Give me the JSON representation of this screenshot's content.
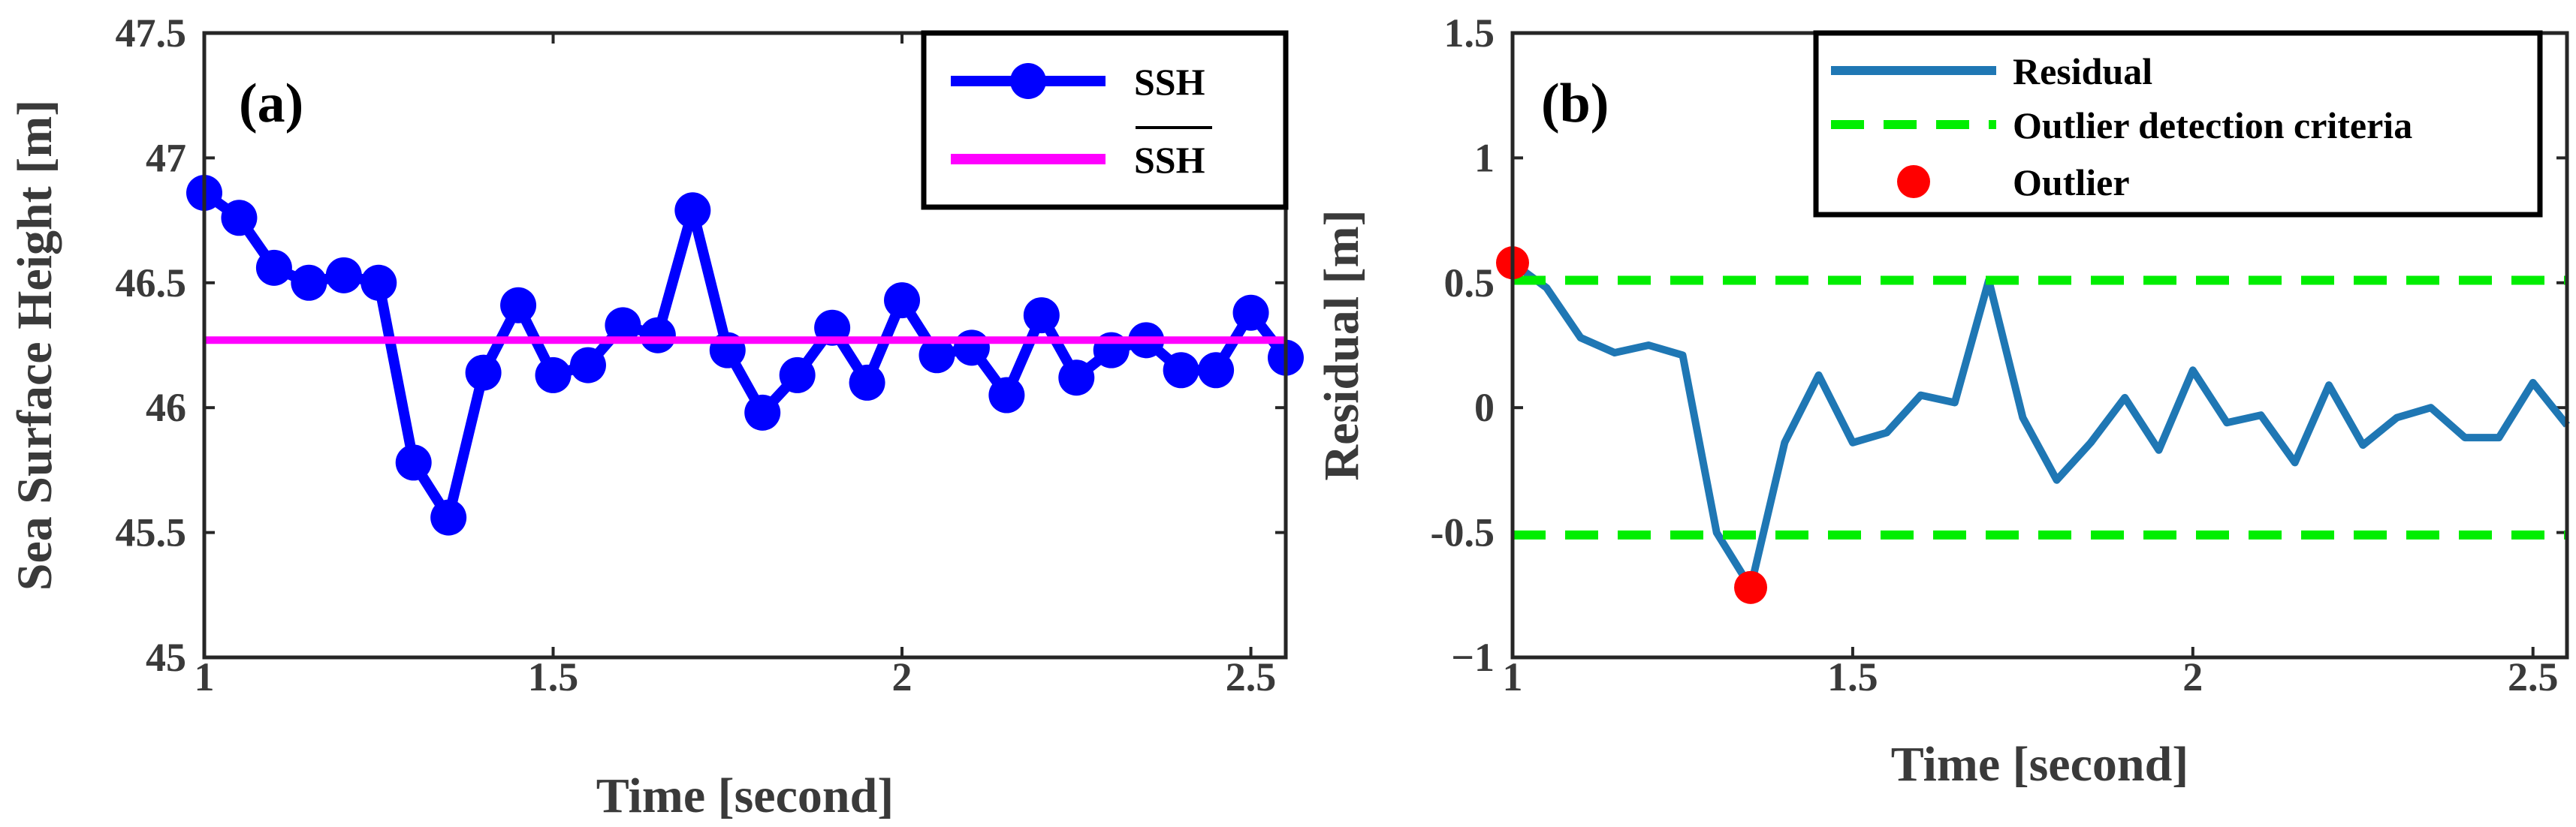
{
  "chart_data": [
    {
      "type": "line",
      "panel_label": "(a)",
      "xlabel": "Time [second]",
      "ylabel": "Sea Surface Height [m]",
      "xlim": [
        1,
        2.55
      ],
      "ylim": [
        45,
        47.5
      ],
      "xticks": [
        1,
        1.5,
        2,
        2.5
      ],
      "xtick_labels": [
        "1",
        "1.5",
        "2",
        "2.5"
      ],
      "yticks": [
        45,
        45.5,
        46,
        46.5,
        47,
        47.5
      ],
      "ytick_labels": [
        "45",
        "45.5",
        "46",
        "46.5",
        "47",
        "47.5"
      ],
      "legend_position": "top-right",
      "series": [
        {
          "name": "SSH",
          "style": "line-with-markers",
          "color": "#0000ff",
          "x": [
            1.0,
            1.05,
            1.1,
            1.15,
            1.2,
            1.25,
            1.3,
            1.35,
            1.4,
            1.45,
            1.5,
            1.55,
            1.6,
            1.65,
            1.7,
            1.75,
            1.8,
            1.85,
            1.9,
            1.95,
            2.0,
            2.05,
            2.1,
            2.15,
            2.2,
            2.25,
            2.3,
            2.35,
            2.4,
            2.45,
            2.5,
            2.55
          ],
          "values": [
            46.86,
            46.76,
            46.56,
            46.5,
            46.53,
            46.5,
            45.78,
            45.56,
            46.14,
            46.41,
            46.13,
            46.17,
            46.33,
            46.29,
            46.79,
            46.23,
            45.98,
            46.13,
            46.32,
            46.1,
            46.43,
            46.21,
            46.24,
            46.05,
            46.37,
            46.12,
            46.23,
            46.27,
            46.15,
            46.15,
            46.38,
            46.2
          ]
        },
        {
          "name": "SSH",
          "overline": true,
          "style": "line",
          "color": "#ff00ff",
          "x": [
            1.0,
            2.55
          ],
          "values": [
            46.27,
            46.27
          ]
        }
      ]
    },
    {
      "type": "line",
      "panel_label": "(b)",
      "xlabel": "Time [second]",
      "ylabel": "Residual [m]",
      "xlim": [
        1,
        2.55
      ],
      "ylim": [
        -1,
        1.5
      ],
      "xticks": [
        1,
        1.5,
        2,
        2.5
      ],
      "xtick_labels": [
        "1",
        "1.5",
        "2",
        "2.5"
      ],
      "yticks": [
        -1,
        -0.5,
        0,
        0.5,
        1,
        1.5
      ],
      "ytick_labels": [
        "−1",
        "-0.5",
        "0",
        "0.5",
        "1",
        "1.5"
      ],
      "legend_position": "top-right",
      "series": [
        {
          "name": "Residual",
          "style": "line",
          "color": "#1f77b4",
          "x": [
            1.0,
            1.05,
            1.1,
            1.15,
            1.2,
            1.25,
            1.3,
            1.35,
            1.4,
            1.45,
            1.5,
            1.55,
            1.6,
            1.65,
            1.7,
            1.75,
            1.8,
            1.85,
            1.9,
            1.95,
            2.0,
            2.05,
            2.1,
            2.15,
            2.2,
            2.25,
            2.3,
            2.35,
            2.4,
            2.45,
            2.5,
            2.55
          ],
          "values": [
            0.58,
            0.48,
            0.28,
            0.22,
            0.25,
            0.21,
            -0.5,
            -0.72,
            -0.14,
            0.13,
            -0.14,
            -0.1,
            0.05,
            0.02,
            0.51,
            -0.04,
            -0.29,
            -0.14,
            0.04,
            -0.17,
            0.15,
            -0.06,
            -0.03,
            -0.22,
            0.09,
            -0.15,
            -0.04,
            0.0,
            -0.12,
            -0.12,
            0.1,
            -0.07
          ]
        },
        {
          "name": "Outlier detection criteria",
          "style": "dashed",
          "color": "#00ee00",
          "lines_at": [
            0.51,
            -0.51
          ]
        },
        {
          "name": "Outlier",
          "style": "markers",
          "color": "#ff0000",
          "x": [
            1.0,
            1.35
          ],
          "values": [
            0.58,
            -0.72
          ]
        }
      ]
    }
  ]
}
